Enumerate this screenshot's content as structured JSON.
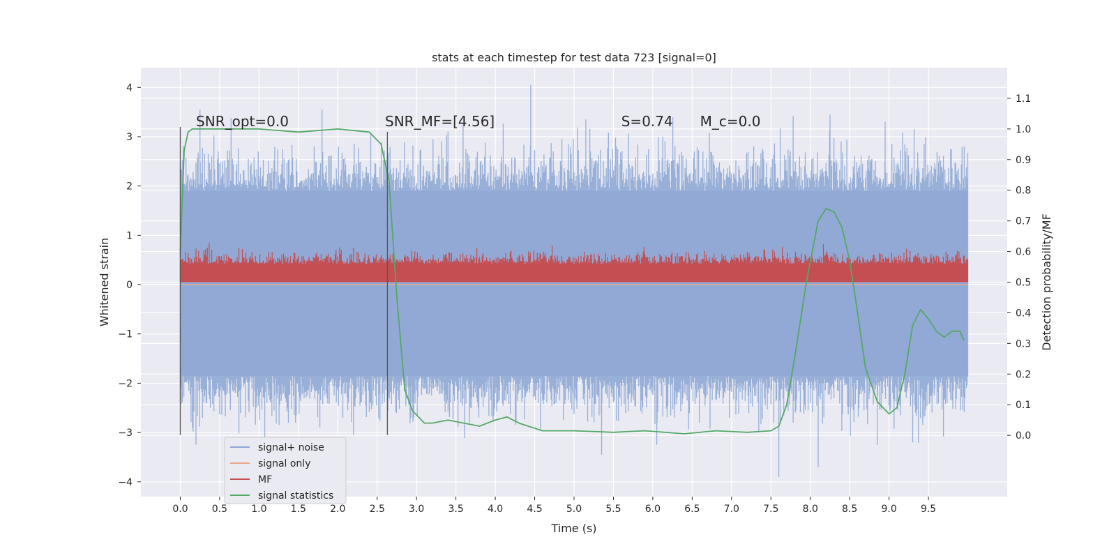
{
  "chart_data": {
    "type": "line",
    "title": "stats at each timestep for test data 723 [signal=0]",
    "xlabel": "Time (s)",
    "ylabel": "Whitened strain",
    "ylabel_right": "Detection probability/MF",
    "xlim": [
      -0.5,
      10.5
    ],
    "ylim": [
      -4.3,
      4.4
    ],
    "ylim_right": [
      -0.2,
      1.2
    ],
    "x_ticks": [
      0.0,
      0.5,
      1.0,
      1.5,
      2.0,
      2.5,
      3.0,
      3.5,
      4.0,
      4.5,
      5.0,
      5.5,
      6.0,
      6.5,
      7.0,
      7.5,
      8.0,
      8.5,
      9.0,
      9.5
    ],
    "x_tick_labels": [
      "0.0",
      "0.5",
      "1.0",
      "1.5",
      "2.0",
      "2.5",
      "3.0",
      "3.5",
      "4.0",
      "4.5",
      "5.0",
      "5.5",
      "6.0",
      "6.5",
      "7.0",
      "7.5",
      "8.0",
      "8.5",
      "9.0",
      "9.5"
    ],
    "y_ticks": [
      4,
      3,
      2,
      1,
      0,
      -1,
      -2,
      -3,
      -4
    ],
    "y_tick_labels": [
      "4",
      "3",
      "2",
      "1",
      "0",
      "−1",
      "−2",
      "−3",
      "−4"
    ],
    "y_right_ticks": [
      1.1,
      1.0,
      0.9,
      0.8,
      0.7,
      0.6,
      0.5,
      0.4,
      0.3,
      0.2,
      0.1,
      0.0
    ],
    "y_right_tick_labels": [
      "1.1",
      "1.0",
      "0.9",
      "0.8",
      "0.7",
      "0.6",
      "0.5",
      "0.4",
      "0.3",
      "0.2",
      "0.1",
      "0.0"
    ],
    "grid": true,
    "legend_position": "bottom-left",
    "annotations": [
      {
        "text": "SNR_opt=0.0",
        "x": 0.2,
        "y": 3.2
      },
      {
        "text": "SNR_MF=[4.56]",
        "x": 2.6,
        "y": 3.2
      },
      {
        "text": "S=0.74",
        "x": 5.6,
        "y": 3.2
      },
      {
        "text": "M_c=0.0",
        "x": 6.6,
        "y": 3.2
      }
    ],
    "vertical_lines": [
      {
        "x": 0.0,
        "y_from": -3.05,
        "y_to": 3.2
      },
      {
        "x": 2.63,
        "y_from": -3.05,
        "y_to": 3.1
      }
    ],
    "series": [
      {
        "name": "signal+ noise",
        "color": "#8fa8d4",
        "axis": "left",
        "x_range": [
          0.0,
          10.0
        ],
        "band": [
          -1.85,
          1.9
        ],
        "notable_spikes": [
          {
            "x": 4.45,
            "y": 4.05
          },
          {
            "x": 0.25,
            "y": 3.55
          },
          {
            "x": 1.8,
            "y": 3.55
          },
          {
            "x": 8.25,
            "y": 3.45
          },
          {
            "x": 8.95,
            "y": 3.3
          },
          {
            "x": 5.15,
            "y": 3.35
          },
          {
            "x": 7.6,
            "y": -3.9
          },
          {
            "x": 8.1,
            "y": -3.7
          },
          {
            "x": 5.35,
            "y": -3.45
          },
          {
            "x": 6.05,
            "y": -3.25
          },
          {
            "x": 0.2,
            "y": -3.25
          },
          {
            "x": 8.85,
            "y": -3.25
          },
          {
            "x": 9.3,
            "y": -3.2
          },
          {
            "x": 3.4,
            "y": 3.1
          },
          {
            "x": 2.2,
            "y": -3.05
          }
        ]
      },
      {
        "name": "signal only",
        "color": "#e8a98b",
        "axis": "left",
        "x": [
          0.0,
          10.0
        ],
        "y": [
          0.0,
          0.0
        ]
      },
      {
        "name": "MF",
        "color": "#c44e52",
        "axis": "right",
        "x_range": [
          0.0,
          10.0
        ],
        "band": [
          0.51,
          0.56
        ],
        "baseline": 0.5
      },
      {
        "name": "signal statistics",
        "color": "#55a868",
        "axis": "right",
        "x": [
          0.0,
          0.05,
          0.1,
          0.15,
          0.2,
          0.3,
          0.5,
          1.0,
          1.5,
          2.0,
          2.4,
          2.55,
          2.65,
          2.75,
          2.85,
          2.95,
          3.1,
          3.2,
          3.4,
          3.6,
          3.8,
          4.0,
          4.15,
          4.3,
          4.6,
          5.0,
          5.5,
          5.9,
          6.4,
          6.8,
          7.2,
          7.5,
          7.6,
          7.7,
          7.8,
          7.95,
          8.1,
          8.2,
          8.3,
          8.4,
          8.5,
          8.6,
          8.7,
          8.85,
          9.0,
          9.1,
          9.2,
          9.3,
          9.4,
          9.5,
          9.6,
          9.7,
          9.8,
          9.9,
          9.95
        ],
        "y": [
          0.6,
          0.93,
          0.99,
          1.0,
          1.0,
          1.0,
          1.0,
          1.0,
          0.99,
          1.0,
          0.99,
          0.95,
          0.83,
          0.45,
          0.15,
          0.08,
          0.04,
          0.04,
          0.05,
          0.04,
          0.03,
          0.05,
          0.06,
          0.04,
          0.015,
          0.015,
          0.01,
          0.015,
          0.005,
          0.015,
          0.01,
          0.015,
          0.03,
          0.1,
          0.25,
          0.5,
          0.7,
          0.74,
          0.73,
          0.68,
          0.57,
          0.4,
          0.22,
          0.11,
          0.07,
          0.09,
          0.2,
          0.36,
          0.41,
          0.38,
          0.34,
          0.32,
          0.34,
          0.34,
          0.31
        ]
      }
    ]
  }
}
